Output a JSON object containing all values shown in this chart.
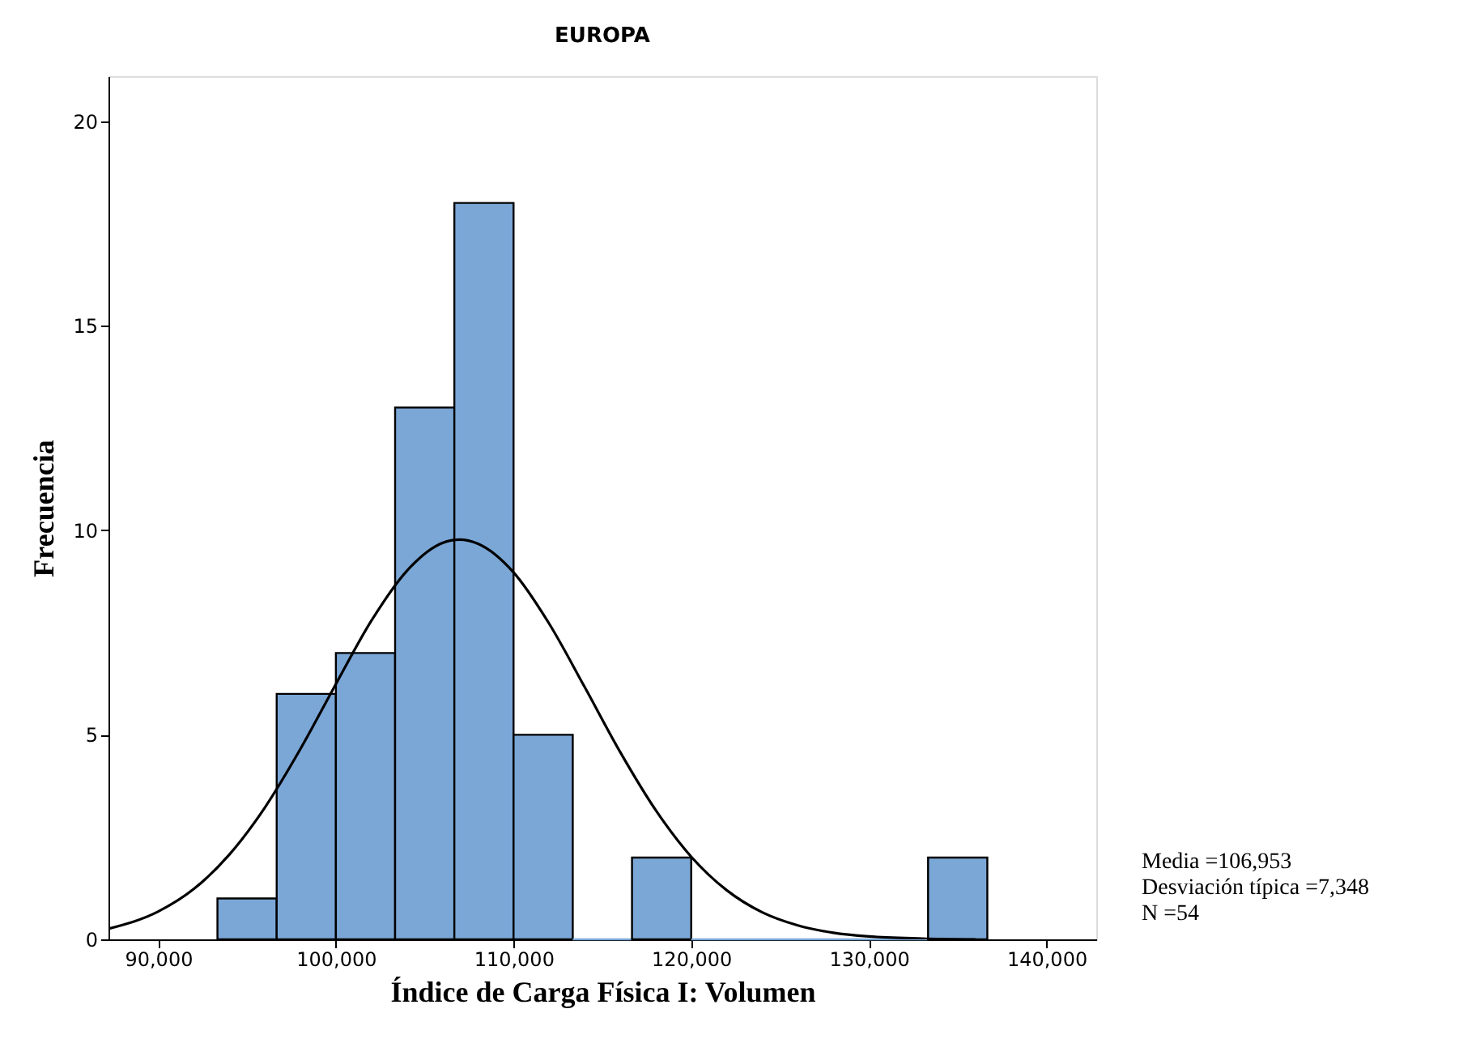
{
  "chart_data": {
    "type": "histogram",
    "title": "EUROPA",
    "xlabel": "Índice de Carga Física I: Volumen",
    "ylabel": "Frecuencia",
    "bins": [
      93333,
      96667,
      100000,
      103333,
      106667,
      110000,
      113333,
      116667,
      120000,
      123333,
      126667,
      130000,
      133333,
      136667
    ],
    "values": [
      1,
      6,
      7,
      13,
      18,
      5,
      0,
      2,
      0,
      0,
      0,
      0,
      2
    ],
    "color": "#7ba7d6",
    "series": [
      {
        "type": "line",
        "color": "#000000",
        "x": [
          87200,
          90000,
          92000,
          94000,
          96000,
          98000,
          100000,
          102000,
          104000,
          106000,
          106953,
          108000,
          110000,
          112000,
          114000,
          116000,
          118000,
          120000,
          122000,
          124000,
          126000,
          128000,
          130000,
          133000,
          136000
        ],
        "values": [
          0.26,
          0.68,
          1.23,
          2.07,
          3.22,
          4.65,
          6.24,
          7.79,
          9.01,
          9.69,
          9.77,
          9.67,
          8.97,
          7.72,
          6.17,
          4.58,
          3.16,
          2.02,
          1.2,
          0.66,
          0.34,
          0.16,
          0.07,
          0.02,
          0.0
        ]
      }
    ],
    "xlim": [
      87200,
      142800
    ],
    "xticks": [
      {
        "value": 90000,
        "label": "90,000"
      },
      {
        "value": 100000,
        "label": "100,000"
      },
      {
        "value": 110000,
        "label": "110,000"
      },
      {
        "value": 120000,
        "label": "120,000"
      },
      {
        "value": 130000,
        "label": "130,000"
      },
      {
        "value": 140000,
        "label": "140,000"
      }
    ],
    "ylim": [
      0,
      21.1
    ],
    "yticks": [
      0,
      5,
      10,
      15,
      20
    ],
    "grid": false,
    "annotations": [
      "Media =106,953",
      "Desviación típica =7,348",
      "N =54"
    ]
  }
}
